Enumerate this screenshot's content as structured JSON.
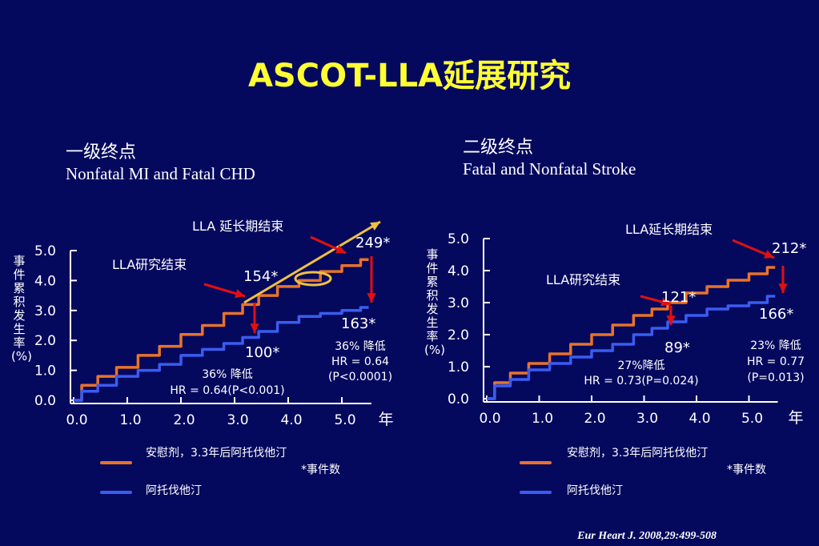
{
  "title": "ASCOT-LLA延展研究",
  "citation": "Eur Heart J. 2008,29:499-508",
  "colors": {
    "placebo": "#e8732a",
    "atorvastatin": "#3a5cf0",
    "arrow": "#e01010",
    "trend": "#f0c040",
    "title": "#ffff33"
  },
  "chart_data": [
    {
      "type": "line",
      "title": "一级终点",
      "subtitle": "Nonfatal MI and Fatal CHD",
      "ylabel": "事件累积发生率(%)",
      "xlabel": "年",
      "xlim": [
        0,
        5.6
      ],
      "ylim": [
        0,
        5
      ],
      "x_ticks": [
        "0.0",
        "1.0",
        "2.0",
        "3.0",
        "4.0",
        "5.0"
      ],
      "y_ticks": [
        "0.0",
        "1.0",
        "2.0",
        "3.0",
        "4.0",
        "5.0"
      ],
      "series": [
        {
          "name": "安慰剂，3.3年后阿托伐他汀",
          "x": [
            0,
            0.3,
            0.6,
            1.0,
            1.4,
            1.8,
            2.2,
            2.6,
            3.0,
            3.3,
            3.6,
            4.0,
            4.4,
            4.8,
            5.2,
            5.5
          ],
          "y": [
            0,
            0.5,
            0.8,
            1.1,
            1.5,
            1.8,
            2.2,
            2.5,
            2.9,
            3.2,
            3.5,
            3.8,
            4.0,
            4.3,
            4.5,
            4.7
          ]
        },
        {
          "name": "阿托伐他汀",
          "x": [
            0,
            0.3,
            0.6,
            1.0,
            1.4,
            1.8,
            2.2,
            2.6,
            3.0,
            3.3,
            3.6,
            4.0,
            4.4,
            4.8,
            5.2,
            5.5
          ],
          "y": [
            0,
            0.3,
            0.5,
            0.8,
            1.0,
            1.2,
            1.5,
            1.7,
            1.9,
            2.1,
            2.3,
            2.6,
            2.8,
            2.9,
            3.0,
            3.1
          ]
        }
      ],
      "annotations": {
        "lla_end": "LLA研究结束",
        "lla_extension_end": "LLA 延长期结束",
        "placebo_count_lla": "154*",
        "atorva_count_lla": "100*",
        "placebo_count_ext": "249*",
        "atorva_count_ext": "163*",
        "reduction_lla": [
          "36% 降低",
          "HR = 0.64(P<0.001)"
        ],
        "reduction_ext": [
          "36% 降低",
          "HR = 0.64",
          "(P<0.0001)"
        ]
      }
    },
    {
      "type": "line",
      "title": "二级终点",
      "subtitle": "Fatal and Nonfatal Stroke",
      "ylabel": "事件累积发生率(%)",
      "xlabel": "年",
      "xlim": [
        0,
        5.6
      ],
      "ylim": [
        0,
        5
      ],
      "x_ticks": [
        "0.0",
        "1.0",
        "2.0",
        "3.0",
        "4.0",
        "5.0"
      ],
      "y_ticks": [
        "0.0",
        "1.0",
        "2.0",
        "3.0",
        "4.0",
        "5.0"
      ],
      "series": [
        {
          "name": "安慰剂，3.3年后阿托伐他汀",
          "x": [
            0,
            0.3,
            0.6,
            1.0,
            1.4,
            1.8,
            2.2,
            2.6,
            3.0,
            3.3,
            3.6,
            4.0,
            4.4,
            4.8,
            5.2,
            5.5
          ],
          "y": [
            0,
            0.5,
            0.8,
            1.1,
            1.4,
            1.7,
            2.0,
            2.3,
            2.6,
            2.8,
            3.0,
            3.3,
            3.5,
            3.7,
            3.9,
            4.1
          ]
        },
        {
          "name": "阿托伐他汀",
          "x": [
            0,
            0.3,
            0.6,
            1.0,
            1.4,
            1.8,
            2.2,
            2.6,
            3.0,
            3.3,
            3.6,
            4.0,
            4.4,
            4.8,
            5.2,
            5.5
          ],
          "y": [
            0,
            0.4,
            0.6,
            0.9,
            1.1,
            1.3,
            1.5,
            1.7,
            2.0,
            2.2,
            2.4,
            2.6,
            2.8,
            2.9,
            3.0,
            3.2
          ]
        }
      ],
      "annotations": {
        "lla_end": "LLA研究结束",
        "lla_extension_end": "LLA延长期结束",
        "placebo_count_lla": "121*",
        "atorva_count_lla": "89*",
        "placebo_count_ext": "212*",
        "atorva_count_ext": "166*",
        "reduction_lla": [
          "27%降低",
          "HR = 0.73(P=0.024)"
        ],
        "reduction_ext": [
          "23% 降低",
          "HR = 0.77",
          "(P=0.013)"
        ]
      }
    }
  ],
  "legend": {
    "placebo_label": "安慰剂，3.3年后阿托伐他汀",
    "atorva_label": "阿托伐他汀",
    "event_note": "*事件数"
  }
}
